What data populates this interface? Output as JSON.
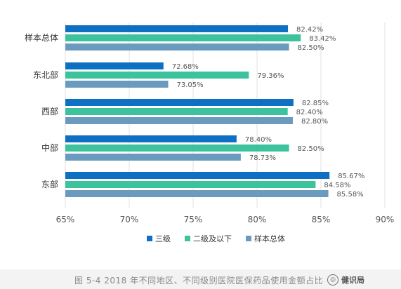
{
  "chart_data": {
    "type": "bar",
    "orientation": "horizontal",
    "categories": [
      "样本总体",
      "东北部",
      "西部",
      "中部",
      "东部"
    ],
    "series": [
      {
        "name": "三级",
        "color": "#0d70c2",
        "values": [
          82.42,
          72.68,
          82.85,
          78.4,
          85.67
        ],
        "labels": [
          "82.42%",
          "72.68%",
          "82.85%",
          "78.40%",
          "85.67%"
        ]
      },
      {
        "name": "二级及以下",
        "color": "#3cc39d",
        "values": [
          83.42,
          79.36,
          82.4,
          82.5,
          84.58
        ],
        "labels": [
          "83.42%",
          "79.36%",
          "82.40%",
          "82.50%",
          "84.58%"
        ]
      },
      {
        "name": "样本总体",
        "color": "#6a9bbf",
        "values": [
          82.5,
          73.05,
          82.8,
          78.73,
          85.58
        ],
        "labels": [
          "82.50%",
          "73.05%",
          "82.80%",
          "78.73%",
          "85.58%"
        ]
      }
    ],
    "x_ticks": [
      "65%",
      "70%",
      "75%",
      "80%",
      "85%",
      "90%"
    ],
    "xlim": [
      65,
      90
    ],
    "grid": true,
    "legend_position": "bottom"
  },
  "caption": {
    "text": "图 5-4 2018 年不同地区、不同级别医院医保药品使用金额占比"
  },
  "watermark": {
    "text": "健识局",
    "icon": "watermark-badge-icon"
  }
}
